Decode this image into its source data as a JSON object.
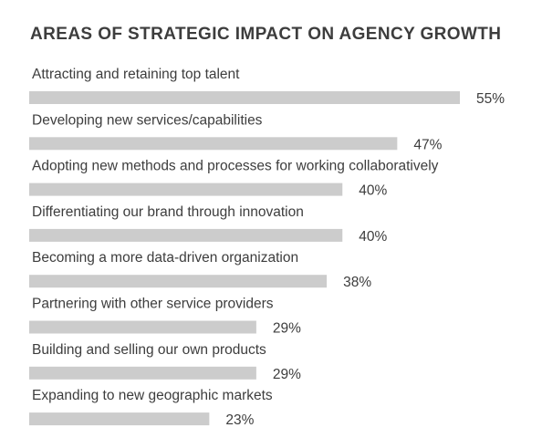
{
  "colors": {
    "bar": "#cccccc",
    "text": "#3d3d3d",
    "background": "#ffffff"
  },
  "chart_data": {
    "type": "bar",
    "orientation": "horizontal",
    "title": "AREAS OF STRATEGIC IMPACT ON AGENCY GROWTH",
    "categories": [
      "Attracting and retaining top talent",
      "Developing new services/capabilities",
      "Adopting new methods and processes for working collaboratively",
      "Differentiating our brand through innovation",
      "Becoming a more data-driven organization",
      "Partnering with other service providers",
      "Building and selling our own products",
      "Expanding to new geographic markets"
    ],
    "values": [
      55,
      47,
      40,
      40,
      38,
      29,
      29,
      23
    ],
    "value_labels": [
      "55%",
      "47%",
      "40%",
      "40%",
      "38%",
      "29%",
      "29%",
      "23%"
    ],
    "unit": "%",
    "grid": false,
    "legend": "none"
  }
}
